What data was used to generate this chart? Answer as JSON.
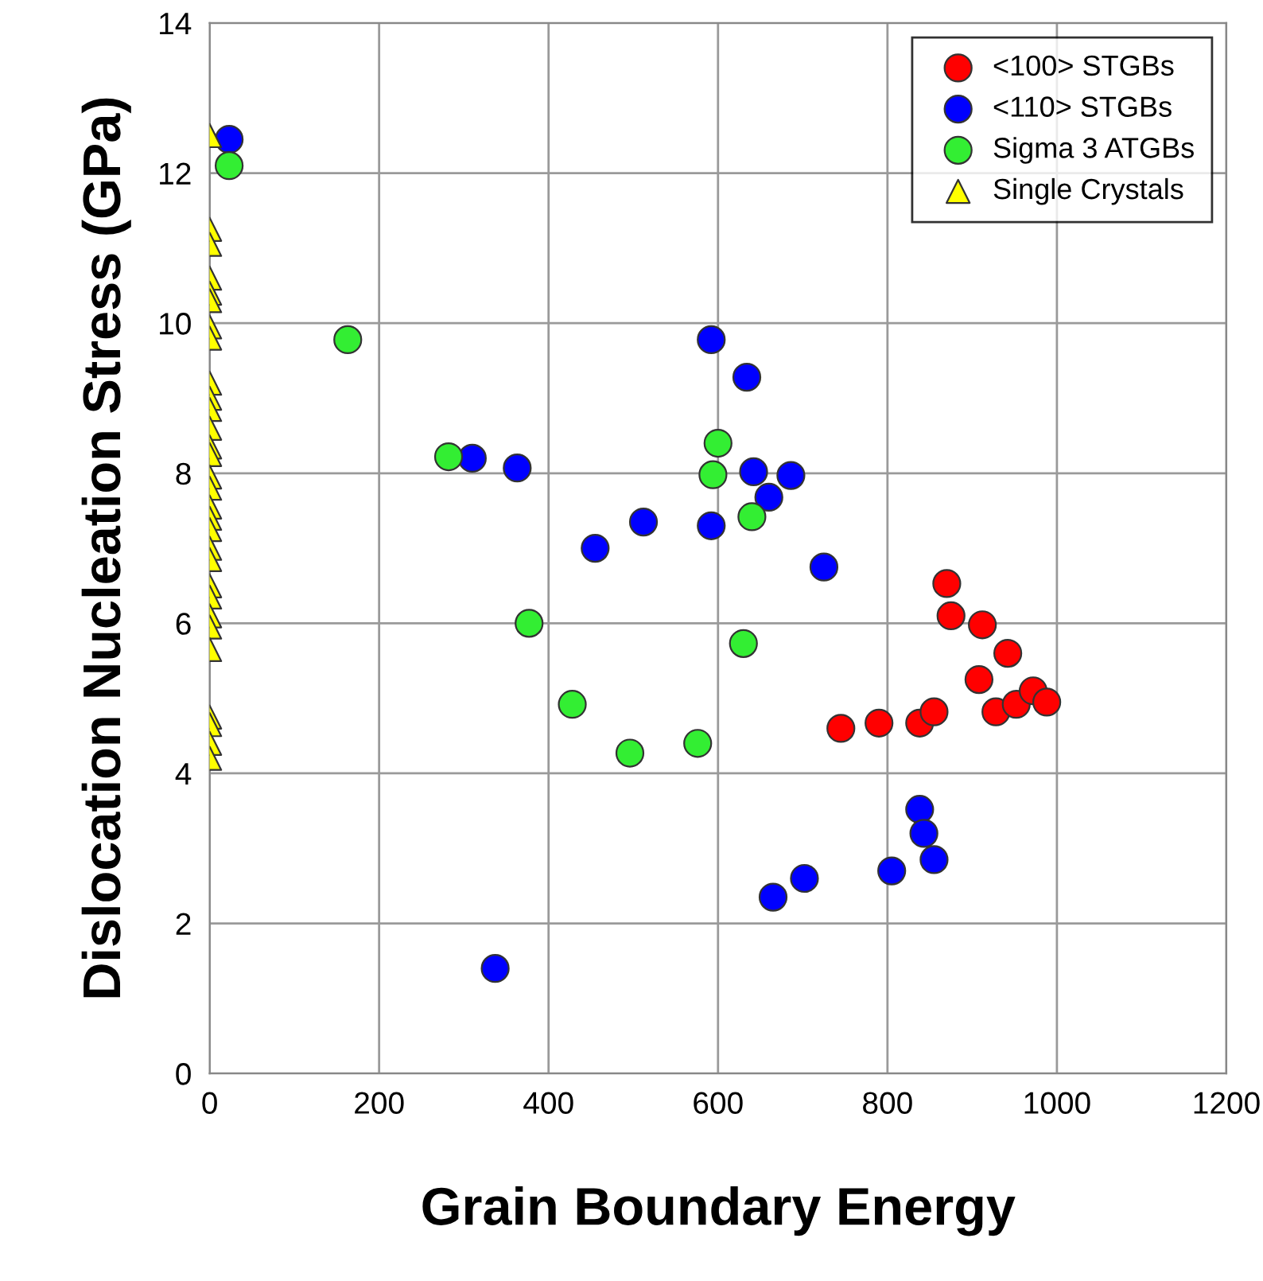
{
  "chart_data": {
    "type": "scatter",
    "xlabel": "Grain Boundary Energy",
    "ylabel": "Dislocation Nucleation Stress (GPa)",
    "xlim": [
      0,
      1200
    ],
    "xticks": [
      0,
      200,
      400,
      600,
      800,
      1000,
      1200
    ],
    "ylim": [
      0,
      14
    ],
    "yticks": [
      0,
      2,
      4,
      6,
      8,
      10,
      12,
      14
    ],
    "grid": true,
    "legend": "top right",
    "series": [
      {
        "name": "<100> STGBs",
        "color": "#ff0000",
        "marker": "circle",
        "x": [
          745,
          790,
          838,
          855,
          870,
          875,
          912,
          908,
          942,
          928,
          952,
          972,
          988
        ],
        "values": [
          4.6,
          4.67,
          4.67,
          4.82,
          6.53,
          6.1,
          5.98,
          5.25,
          5.6,
          4.82,
          4.92,
          5.1,
          4.95
        ]
      },
      {
        "name": "<110> STGBs",
        "color": "#0000ff",
        "marker": "circle",
        "x": [
          23,
          310,
          363,
          337,
          455,
          512,
          592,
          592,
          634,
          642,
          660,
          686,
          725,
          665,
          702,
          805,
          838,
          843,
          855
        ],
        "values": [
          12.45,
          8.2,
          8.07,
          1.4,
          7.0,
          7.35,
          9.78,
          7.3,
          9.28,
          8.02,
          7.68,
          7.97,
          6.75,
          2.35,
          2.6,
          2.7,
          3.52,
          3.2,
          2.85
        ]
      },
      {
        "name": "Sigma 3 ATGBs",
        "color": "#33ee33",
        "marker": "circle",
        "x": [
          23,
          163,
          282,
          377,
          428,
          496,
          576,
          594,
          600,
          640,
          630
        ],
        "values": [
          12.1,
          9.78,
          8.22,
          6.0,
          4.92,
          4.27,
          4.4,
          7.98,
          8.4,
          7.42,
          5.73
        ]
      },
      {
        "name": "Single Crystals",
        "color": "#ffff00",
        "marker": "triangle",
        "x": [
          0,
          0,
          0,
          0,
          0,
          0,
          0,
          0,
          0,
          0,
          0,
          0,
          0,
          0,
          0,
          0,
          0,
          0,
          0,
          0,
          0,
          0,
          0,
          0,
          0,
          0,
          0,
          0,
          0,
          0
        ],
        "values": [
          12.5,
          11.25,
          11.05,
          10.6,
          10.4,
          10.3,
          9.95,
          9.8,
          9.2,
          9.0,
          8.85,
          8.6,
          8.35,
          8.25,
          7.95,
          7.8,
          7.55,
          7.4,
          7.25,
          7.0,
          6.85,
          6.5,
          6.35,
          6.1,
          5.95,
          5.65,
          4.75,
          4.65,
          4.4,
          4.2
        ]
      }
    ]
  }
}
